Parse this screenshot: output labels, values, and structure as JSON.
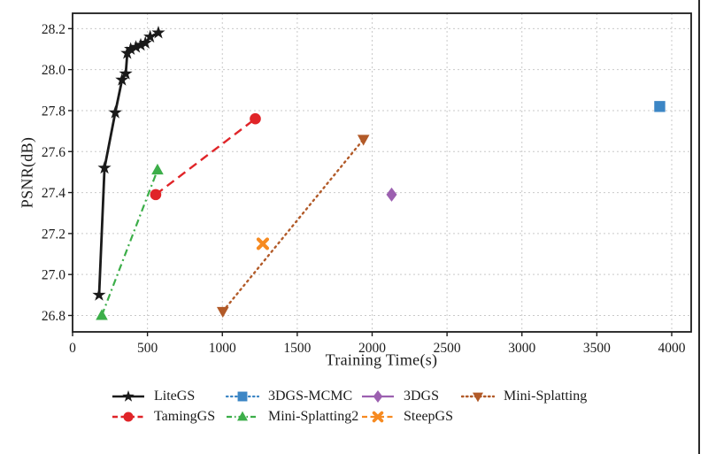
{
  "figure": {
    "xlabel": "Training Time(s)",
    "ylabel": "PSNR(dB)"
  },
  "chart_data": {
    "type": "line",
    "title": "",
    "xlabel": "Training Time(s)",
    "ylabel": "PSNR(dB)",
    "xlim": [
      0,
      4130
    ],
    "ylim": [
      26.72,
      28.275
    ],
    "xticks": [
      0,
      500,
      1000,
      1500,
      2000,
      2500,
      3000,
      3500,
      4000
    ],
    "yticks": [
      26.8,
      27.0,
      27.2,
      27.4,
      27.6,
      27.8,
      28.0,
      28.2
    ],
    "grid": true,
    "grid_color": "#c9c9c9",
    "axis_color": "#1c1c1c",
    "legend_position": "below",
    "series": [
      {
        "name": "LiteGS",
        "color": "#1a1a1a",
        "line": "solid",
        "line_width": 2.8,
        "marker": "star",
        "points": [
          [
            177,
            26.9
          ],
          [
            213,
            27.52
          ],
          [
            285,
            27.79
          ],
          [
            330,
            27.95
          ],
          [
            355,
            27.98
          ],
          [
            365,
            28.08
          ],
          [
            388,
            28.1
          ],
          [
            423,
            28.11
          ],
          [
            455,
            28.12
          ],
          [
            486,
            28.13
          ],
          [
            518,
            28.16
          ],
          [
            573,
            28.18
          ]
        ]
      },
      {
        "name": "TamingGS",
        "color": "#e02428",
        "line": "dashed",
        "line_width": 2.4,
        "marker": "circle",
        "points": [
          [
            555,
            27.39
          ],
          [
            1220,
            27.76
          ]
        ]
      },
      {
        "name": "3DGS-MCMC",
        "color": "#3c86c5",
        "line": "dotted",
        "line_width": 2.2,
        "marker": "square",
        "points": [
          [
            3920,
            27.82
          ]
        ]
      },
      {
        "name": "Mini-Splatting2",
        "color": "#3cae49",
        "line": "dashdot",
        "line_width": 2.2,
        "marker": "triangle-up",
        "points": [
          [
            195,
            26.8
          ],
          [
            567,
            27.51
          ]
        ]
      },
      {
        "name": "3DGS",
        "color": "#9c60b0",
        "line": "solid",
        "line_width": 2.2,
        "marker": "diamond",
        "points": [
          [
            2130,
            27.39
          ]
        ]
      },
      {
        "name": "SteepGS",
        "color": "#f68a21",
        "line": "dashed",
        "line_width": 2.2,
        "marker": "x",
        "points": [
          [
            1270,
            27.15
          ]
        ]
      },
      {
        "name": "Mini-Splatting",
        "color": "#b25a28",
        "line": "dotted",
        "line_width": 2.4,
        "marker": "triangle-down",
        "points": [
          [
            1003,
            26.82
          ],
          [
            1942,
            27.66
          ]
        ]
      }
    ],
    "legend_rows": [
      [
        "LiteGS",
        "3DGS-MCMC",
        "3DGS",
        "Mini-Splatting"
      ],
      [
        "TamingGS",
        "Mini-Splatting2",
        "SteepGS"
      ]
    ]
  }
}
